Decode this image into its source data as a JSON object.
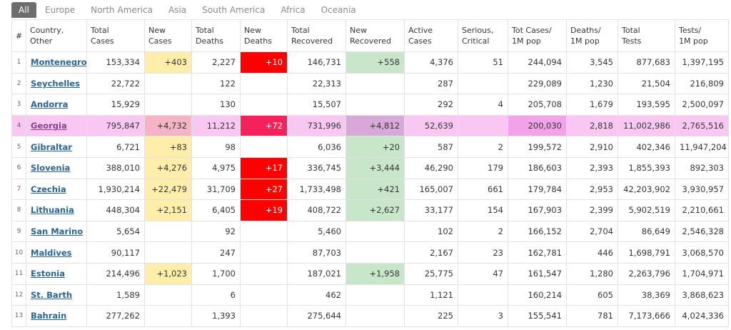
{
  "tabs": [
    "All",
    "Europe",
    "North America",
    "Asia",
    "South America",
    "Africa",
    "Oceania"
  ],
  "table": {
    "headers": [
      [
        "#"
      ],
      [
        "Country,",
        "Other"
      ],
      [
        "Total",
        "Cases"
      ],
      [
        "New",
        "Cases"
      ],
      [
        "Total",
        "Deaths"
      ],
      [
        "New",
        "Deaths"
      ],
      [
        "Total",
        "Recovered"
      ],
      [
        "New",
        "Recovered"
      ],
      [
        "Active",
        "Cases"
      ],
      [
        "Serious,",
        "Critical"
      ],
      [
        "Tot Cases/",
        "1M pop"
      ],
      [
        "Deaths/",
        "1M pop"
      ],
      [
        "Total",
        "Tests"
      ],
      [
        "Tests/",
        "1M pop"
      ]
    ],
    "rows": [
      [
        "1",
        "Montenegro",
        "153,334",
        "+403",
        "2,227",
        "+10",
        "146,731",
        "+558",
        "4,376",
        "51",
        "244,094",
        "3,545",
        "877,683",
        "1,397,195"
      ],
      [
        "2",
        "Seychelles",
        "22,722",
        null,
        "122",
        null,
        "22,313",
        null,
        "287",
        null,
        "229,089",
        "1,230",
        "21,504",
        "216,809"
      ],
      [
        "3",
        "Andorra",
        "15,929",
        null,
        "130",
        null,
        "15,507",
        null,
        "292",
        "4",
        "205,708",
        "1,679",
        "193,595",
        "2,500,097"
      ],
      [
        "4",
        "Georgia",
        "795,847",
        "+4,732",
        "11,212",
        "+72",
        "731,996",
        "+4,812",
        "52,639",
        null,
        "200,030",
        "2,818",
        "11,002,986",
        "2,765,516"
      ],
      [
        "5",
        "Gibraltar",
        "6,721",
        "+83",
        "98",
        null,
        "6,036",
        "+20",
        "587",
        "2",
        "199,572",
        "2,910",
        "402,346",
        "11,947,204"
      ],
      [
        "6",
        "Slovenia",
        "388,010",
        "+4,276",
        "4,975",
        "+17",
        "336,745",
        "+3,444",
        "46,290",
        "179",
        "186,603",
        "2,393",
        "1,855,393",
        "892,303"
      ],
      [
        "7",
        "Czechia",
        "1,930,214",
        "+22,479",
        "31,709",
        "+27",
        "1,733,498",
        "+421",
        "165,007",
        "661",
        "179,784",
        "2,953",
        "42,203,902",
        "3,930,957"
      ],
      [
        "8",
        "Lithuania",
        "448,304",
        "+2,151",
        "6,405",
        "+19",
        "408,722",
        "+2,627",
        "33,177",
        "154",
        "167,903",
        "2,399",
        "5,902,519",
        "2,210,661"
      ],
      [
        "9",
        "San Marino",
        "5,654",
        null,
        "92",
        null,
        "5,460",
        null,
        "102",
        "2",
        "166,152",
        "2,704",
        "86,649",
        "2,546,328"
      ],
      [
        "10",
        "Maldives",
        "90,117",
        null,
        "247",
        null,
        "87,703",
        null,
        "2,167",
        "23",
        "162,781",
        "446",
        "1,698,791",
        "3,068,570"
      ],
      [
        "11",
        "Estonia",
        "214,496",
        "+1,023",
        "1,700",
        null,
        "187,021",
        "+1,958",
        "25,775",
        "47",
        "161,547",
        "1,280",
        "2,263,796",
        "1,704,971"
      ],
      [
        "12",
        "St. Barth",
        "1,589",
        null,
        "6",
        null,
        "462",
        null,
        "1,121",
        null,
        "160,214",
        "605",
        "38,369",
        "3,868,623"
      ],
      [
        "13",
        "Bahrain",
        "277,262",
        null,
        "1,393",
        null,
        "275,644",
        null,
        "225",
        "3",
        "155,541",
        "781",
        "7,173,666",
        "4,024,336"
      ]
    ]
  }
}
